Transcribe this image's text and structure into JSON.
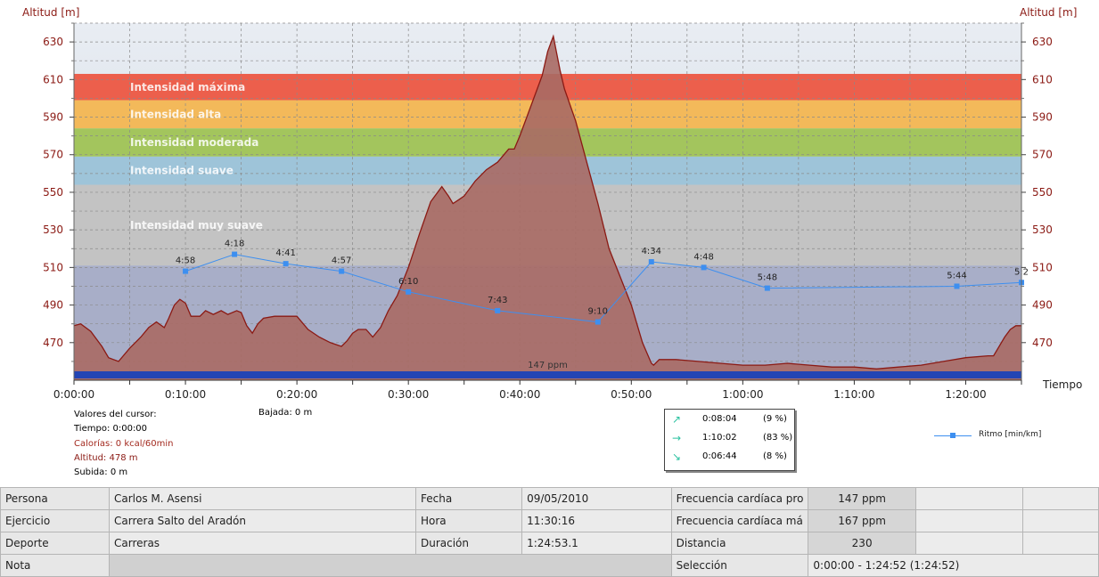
{
  "chart_data": {
    "type": "area",
    "title": "",
    "ylabel_left": "Altitud [m]",
    "ylabel_right": "Altitud [m]",
    "xlabel": "Tiempo",
    "x_unit": "minutes",
    "xlim": [
      0,
      85
    ],
    "ylim": [
      450,
      640
    ],
    "y_ticks": [
      470,
      490,
      510,
      530,
      550,
      570,
      590,
      610,
      630
    ],
    "x_tick_values": [
      0,
      10,
      20,
      30,
      40,
      50,
      60,
      70,
      80
    ],
    "x_tick_labels": [
      "0:00:00",
      "0:10:00",
      "0:20:00",
      "0:30:00",
      "0:40:00",
      "0:50:00",
      "1:00:00",
      "1:10:00",
      "1:20:00"
    ],
    "colors": {
      "altitude_fill": "#a86a64",
      "altitude_line": "#8b1a14",
      "pace_line": "#3d8ff0",
      "hr_bar": "#2345b4"
    },
    "zones": [
      {
        "name": "Intensidad máxima",
        "from": 599,
        "to": 613,
        "color": "#ec5f4c"
      },
      {
        "name": "Intensidad alta",
        "from": 584,
        "to": 599,
        "color": "#f3b95a"
      },
      {
        "name": "Intensidad moderada",
        "from": 569,
        "to": 584,
        "color": "#a3c55d"
      },
      {
        "name": "Intensidad suave",
        "from": 554,
        "to": 569,
        "color": "#9ec4d9"
      },
      {
        "name": "Intensidad muy suave",
        "from": 511,
        "to": 554,
        "color": "#c3c3c3"
      }
    ],
    "series": [
      {
        "name": "Altitud",
        "type": "area",
        "x": [
          0,
          0.6,
          1.5,
          2.5,
          3.1,
          4,
          5,
          6,
          6.7,
          7.4,
          8.1,
          8.5,
          9,
          9.5,
          10,
          10.5,
          11.3,
          11.8,
          12.5,
          13.2,
          13.8,
          14.6,
          15,
          15.5,
          16,
          16.5,
          17,
          18,
          20,
          21,
          22,
          23,
          24,
          24.5,
          25,
          25.5,
          26.2,
          26.8,
          27.5,
          28.2,
          29,
          30,
          31,
          32,
          33,
          33.6,
          34,
          34.5,
          35,
          36,
          37,
          38,
          39,
          39.5,
          40,
          41,
          42,
          42.5,
          43,
          43.6,
          44,
          45,
          46,
          47,
          48,
          49,
          50,
          51,
          51.8,
          52,
          52.5,
          53,
          54,
          56,
          58,
          60,
          62,
          64,
          66,
          68,
          70,
          72,
          74,
          76,
          78,
          80,
          82,
          82.5,
          83,
          83.5,
          84,
          84.5,
          85
        ],
        "y": [
          479,
          480,
          476,
          468,
          462,
          460,
          467,
          473,
          478,
          481,
          478,
          483,
          490,
          493,
          491,
          484,
          484,
          487,
          485,
          487,
          485,
          487,
          486,
          479,
          475,
          480,
          483,
          484,
          484,
          477,
          473,
          470,
          468,
          471,
          475,
          477,
          477,
          473,
          478,
          487,
          495,
          510,
          528,
          545,
          553,
          548,
          544,
          546,
          548,
          556,
          562,
          566,
          573,
          573,
          580,
          596,
          612,
          625,
          633,
          615,
          605,
          588,
          566,
          544,
          520,
          505,
          490,
          470,
          459,
          458,
          461,
          461,
          461,
          460,
          459,
          458,
          458,
          459,
          458,
          457,
          457,
          456,
          457,
          458,
          460,
          462,
          463,
          463,
          468,
          473,
          477,
          479,
          479
        ]
      },
      {
        "name": "Ritmo [min/km]",
        "type": "line",
        "x": [
          10,
          14.4,
          19,
          24,
          30,
          38,
          47,
          51.8,
          56.5,
          62.2,
          79.2,
          85
        ],
        "y": [
          508,
          517,
          512,
          508,
          497,
          487,
          481,
          513,
          510,
          499,
          500,
          502
        ],
        "labels": [
          "4:58",
          "4:18",
          "4:41",
          "4:57",
          "6:10",
          "7:43",
          "9:10",
          "4:34",
          "4:48",
          "5:48",
          "5:44",
          "5:2"
        ]
      }
    ],
    "heart_rate_label": "147 ppm",
    "legend": {
      "label": "Ritmo [min/km]",
      "placement": "bottom-right"
    }
  },
  "cursor_values": {
    "title": "Valores del cursor:",
    "time": "Tiempo: 0:00:00",
    "calories": "Calorías: 0 kcal/60min",
    "altitude": "Altitud: 478 m",
    "ascent": "Subida: 0 m",
    "descent": "Bajada: 0 m"
  },
  "zone_summary": [
    {
      "icon": "arrow-up-right-icon",
      "glyph": "↗",
      "time": "0:08:04",
      "percent": "(9 %)"
    },
    {
      "icon": "arrow-right-icon",
      "glyph": "→",
      "time": "1:10:02",
      "percent": "(83 %)"
    },
    {
      "icon": "arrow-down-right-icon",
      "glyph": "↘",
      "time": "0:06:44",
      "percent": "(8 %)"
    }
  ],
  "info_table": {
    "persona_label": "Persona",
    "persona": "Carlos M. Asensi",
    "ejercicio_label": "Ejercicio",
    "ejercicio": "Carrera Salto del Aradón",
    "deporte_label": "Deporte",
    "deporte": "Carreras",
    "nota_label": "Nota",
    "fecha_label": "Fecha",
    "fecha": "09/05/2010",
    "hora_label": "Hora",
    "hora": "11:30:16",
    "duracion_label": "Duración",
    "duracion": "1:24:53.1",
    "fc_prom_label": "Frecuencia cardíaca pro",
    "fc_prom": "147 ppm",
    "fc_max_label": "Frecuencia cardíaca má",
    "fc_max": "167 ppm",
    "distancia_label": "Distancia",
    "distancia": "230",
    "seleccion_label": "Selección",
    "seleccion": "0:00:00 - 1:24:52 (1:24:52)"
  }
}
